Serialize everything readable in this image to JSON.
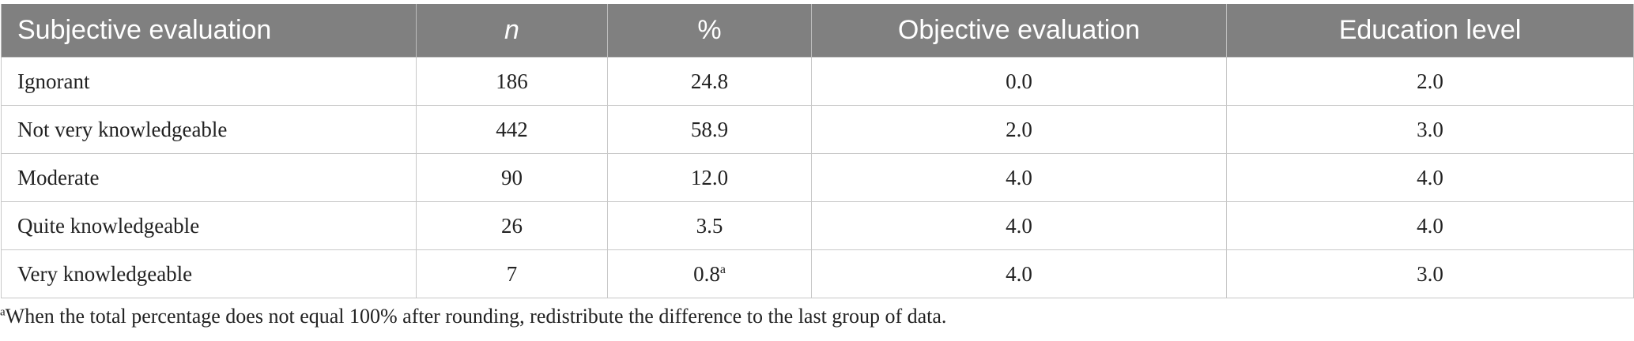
{
  "table": {
    "headers": [
      "Subjective evaluation",
      "n",
      "%",
      "Objective evaluation",
      "Education level"
    ],
    "rows": [
      {
        "subjective": "Ignorant",
        "n": "186",
        "pct": "24.8",
        "pct_note": "",
        "objective": "0.0",
        "education": "2.0"
      },
      {
        "subjective": "Not very knowledgeable",
        "n": "442",
        "pct": "58.9",
        "pct_note": "",
        "objective": "2.0",
        "education": "3.0"
      },
      {
        "subjective": "Moderate",
        "n": "90",
        "pct": "12.0",
        "pct_note": "",
        "objective": "4.0",
        "education": "4.0"
      },
      {
        "subjective": "Quite knowledgeable",
        "n": "26",
        "pct": "3.5",
        "pct_note": "",
        "objective": "4.0",
        "education": "4.0"
      },
      {
        "subjective": "Very knowledgeable",
        "n": "7",
        "pct": "0.8",
        "pct_note": "a",
        "objective": "4.0",
        "education": "3.0"
      }
    ]
  },
  "footnote": {
    "marker": "a",
    "text": "When the total percentage does not equal 100% after rounding, redistribute the difference to the last group of data."
  }
}
